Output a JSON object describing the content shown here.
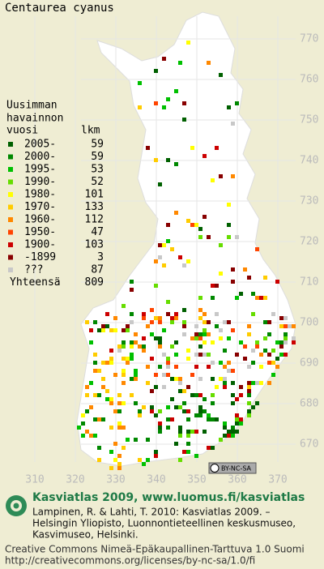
{
  "title": "Centaurea cyanus",
  "map": {
    "y_labels": [
      770,
      760,
      750,
      740,
      730,
      720,
      710,
      700,
      690,
      680,
      670
    ],
    "x_labels": [
      310,
      320,
      330,
      340,
      350,
      360,
      370
    ]
  },
  "legend": {
    "heading": [
      "Uusimman",
      "havainnon"
    ],
    "column_labels": [
      "vuosi",
      "lkm"
    ],
    "entries": [
      {
        "label": "2005-",
        "count": 59,
        "color": "#006000"
      },
      {
        "label": "2000-",
        "count": 59,
        "color": "#008800"
      },
      {
        "label": "1995-",
        "count": 53,
        "color": "#00c000"
      },
      {
        "label": "1990-",
        "count": 52,
        "color": "#66dd00"
      },
      {
        "label": "1980-",
        "count": 101,
        "color": "#ffff00"
      },
      {
        "label": "1970-",
        "count": 133,
        "color": "#ffcc00"
      },
      {
        "label": "1960-",
        "count": 112,
        "color": "#ff8800"
      },
      {
        "label": "1950-",
        "count": 47,
        "color": "#ff4400"
      },
      {
        "label": "1900-",
        "count": 103,
        "color": "#cc0000"
      },
      {
        "label": "-1899",
        "count": 3,
        "color": "#880000"
      },
      {
        "label": "???",
        "count": 87,
        "color": "#c8c8c8"
      }
    ],
    "total_label": "Yhteensä",
    "total": 809
  },
  "license_badge": "BY-NC-SA",
  "footer": {
    "brand": "Kasviatlas 2009, www.luomus.fi/kasviatlas",
    "citation": [
      "Lampinen, R. & Lahti, T. 2010: Kasviatlas 2009. –",
      "Helsingin Yliopisto, Luonnontieteellinen keskusmuseo,",
      "Kasvimuseo, Helsinki."
    ],
    "license": [
      "Creative Commons Nimeä-Epäkaupallinen-Tarttuva 1.0 Suomi",
      "http://creativecommons.org/licenses/by-nc-sa/1.0/fi"
    ]
  }
}
